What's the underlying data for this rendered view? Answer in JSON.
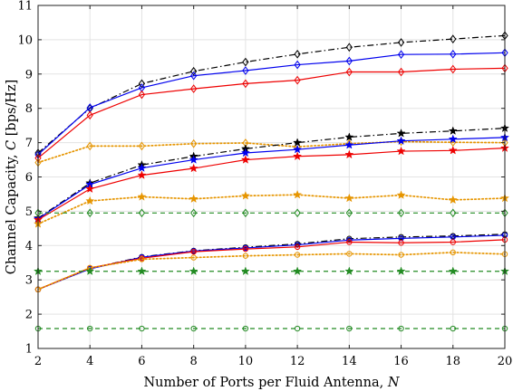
{
  "chart_data": {
    "type": "line",
    "xlabel": "Number of Ports per Fluid Antenna, ",
    "xlabel_var": "N",
    "ylabel": "Channel Capacity, ",
    "ylabel_var": "C",
    "ylabel_unit": " [bps/Hz]",
    "xlim": [
      2,
      20
    ],
    "ylim": [
      1,
      11
    ],
    "xticks": [
      "2",
      "4",
      "6",
      "8",
      "10",
      "12",
      "14",
      "16",
      "18",
      "20"
    ],
    "yticks": [
      "1",
      "2",
      "3",
      "4",
      "5",
      "6",
      "7",
      "8",
      "9",
      "10",
      "11"
    ],
    "grid": true,
    "x": [
      2,
      4,
      6,
      8,
      10,
      12,
      14,
      16,
      18,
      20
    ],
    "series": [
      {
        "color": "#000000",
        "line": "dashdot",
        "marker": "diamond",
        "values": [
          6.7,
          8.0,
          8.72,
          9.08,
          9.35,
          9.58,
          9.78,
          9.92,
          10.02,
          10.12
        ]
      },
      {
        "color": "#0000ee",
        "line": "solid",
        "marker": "diamond",
        "values": [
          6.65,
          8.02,
          8.6,
          8.95,
          9.1,
          9.27,
          9.38,
          9.57,
          9.58,
          9.62
        ]
      },
      {
        "color": "#ee0000",
        "line": "solid",
        "marker": "diamond",
        "values": [
          6.55,
          7.8,
          8.4,
          8.57,
          8.72,
          8.82,
          9.06,
          9.06,
          9.14,
          9.17
        ]
      },
      {
        "color": "#e69500",
        "line": "dotted",
        "marker": "diamond",
        "values": [
          6.42,
          6.9,
          6.9,
          6.97,
          6.99,
          6.88,
          6.97,
          7.03,
          7.01,
          7.0
        ]
      },
      {
        "color": "#000000",
        "line": "dashdot",
        "marker": "star",
        "values": [
          4.8,
          5.82,
          6.35,
          6.6,
          6.82,
          7.0,
          7.16,
          7.27,
          7.34,
          7.42
        ]
      },
      {
        "color": "#0000ee",
        "line": "solid",
        "marker": "star",
        "values": [
          4.78,
          5.78,
          6.26,
          6.5,
          6.7,
          6.8,
          6.93,
          7.05,
          7.1,
          7.15
        ]
      },
      {
        "color": "#ee0000",
        "line": "solid",
        "marker": "star",
        "values": [
          4.75,
          5.65,
          6.05,
          6.25,
          6.5,
          6.6,
          6.65,
          6.75,
          6.77,
          6.84
        ]
      },
      {
        "color": "#e69500",
        "line": "dotted",
        "marker": "star",
        "values": [
          4.63,
          5.3,
          5.42,
          5.36,
          5.45,
          5.48,
          5.38,
          5.47,
          5.33,
          5.38
        ]
      },
      {
        "color": "#228b22",
        "line": "dashed",
        "marker": "diamond",
        "values": [
          4.95,
          4.95,
          4.95,
          4.95,
          4.95,
          4.95,
          4.95,
          4.95,
          4.95,
          4.95
        ]
      },
      {
        "color": "#000000",
        "line": "dashdot",
        "marker": "circle",
        "values": [
          2.72,
          3.33,
          3.67,
          3.85,
          3.95,
          4.05,
          4.2,
          4.25,
          4.28,
          4.33
        ]
      },
      {
        "color": "#0000ee",
        "line": "solid",
        "marker": "circle",
        "values": [
          2.72,
          3.32,
          3.66,
          3.84,
          3.93,
          4.02,
          4.16,
          4.21,
          4.25,
          4.3
        ]
      },
      {
        "color": "#ee0000",
        "line": "solid",
        "marker": "circle",
        "values": [
          2.72,
          3.35,
          3.63,
          3.82,
          3.9,
          3.96,
          4.1,
          4.08,
          4.1,
          4.17
        ]
      },
      {
        "color": "#e69500",
        "line": "dotted",
        "marker": "circle",
        "values": [
          2.72,
          3.35,
          3.6,
          3.65,
          3.7,
          3.73,
          3.76,
          3.73,
          3.8,
          3.75
        ]
      },
      {
        "color": "#228b22",
        "line": "dashed",
        "marker": "star",
        "values": [
          3.25,
          3.25,
          3.25,
          3.25,
          3.25,
          3.25,
          3.25,
          3.25,
          3.25,
          3.25
        ]
      },
      {
        "color": "#228b22",
        "line": "dashed",
        "marker": "circle",
        "values": [
          1.58,
          1.58,
          1.58,
          1.58,
          1.58,
          1.58,
          1.58,
          1.58,
          1.58,
          1.58
        ]
      }
    ]
  }
}
